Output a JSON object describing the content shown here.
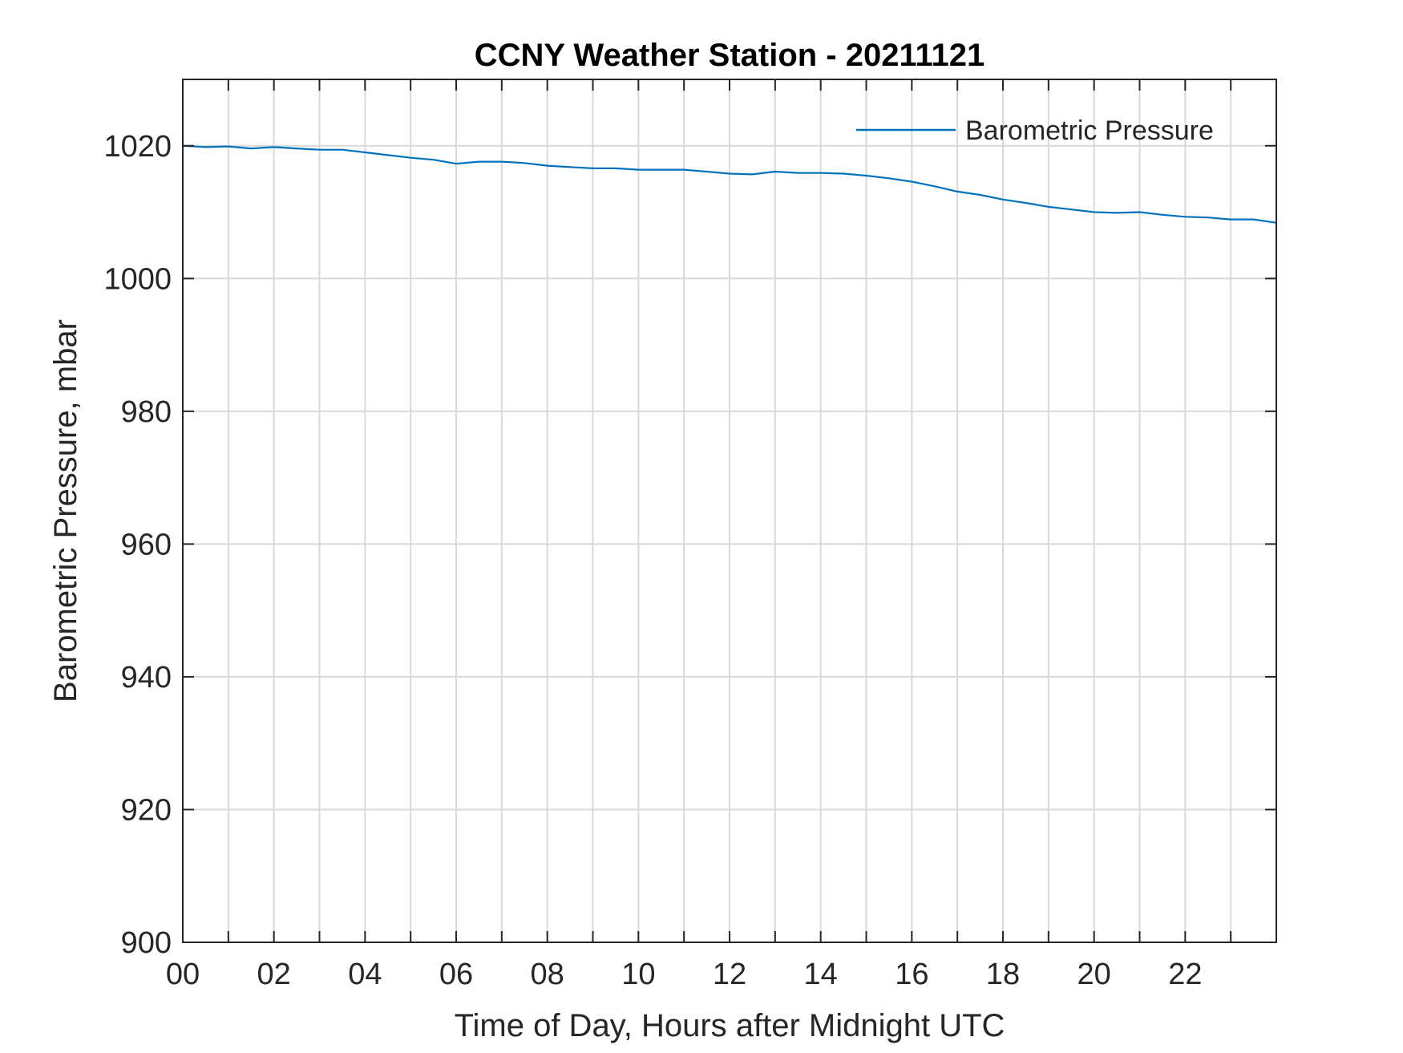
{
  "chart_data": {
    "type": "line",
    "title": "CCNY Weather Station - 20211121",
    "xlabel": "Time of Day, Hours after Midnight UTC",
    "ylabel": "Barometric Pressure, mbar",
    "xlim": [
      0,
      24
    ],
    "ylim": [
      900,
      1030
    ],
    "x_ticks": [
      0,
      2,
      4,
      6,
      8,
      10,
      12,
      14,
      16,
      18,
      20,
      22
    ],
    "x_tick_labels": [
      "00",
      "02",
      "04",
      "06",
      "08",
      "10",
      "12",
      "14",
      "16",
      "18",
      "20",
      "22"
    ],
    "x_minor_ticks": [
      1,
      3,
      5,
      7,
      9,
      11,
      13,
      15,
      17,
      19,
      21,
      23
    ],
    "y_ticks": [
      900,
      920,
      940,
      960,
      980,
      1000,
      1020
    ],
    "y_tick_labels": [
      "900",
      "920",
      "940",
      "960",
      "980",
      "1000",
      "1020"
    ],
    "grid": true,
    "legend_position": "top-right",
    "series": [
      {
        "name": "Barometric Pressure",
        "color": "#0072BD",
        "x": [
          0,
          0.5,
          1,
          1.5,
          2,
          2.5,
          3,
          3.5,
          4,
          4.5,
          5,
          5.5,
          6,
          6.5,
          7,
          7.5,
          8,
          8.5,
          9,
          9.5,
          10,
          10.5,
          11,
          11.5,
          12,
          12.5,
          13,
          13.5,
          14,
          14.5,
          15,
          15.5,
          16,
          16.5,
          17,
          17.5,
          18,
          18.5,
          19,
          19.5,
          20,
          20.5,
          21,
          21.5,
          22,
          22.5,
          23,
          23.5,
          24
        ],
        "y": [
          1020.0,
          1019.8,
          1019.9,
          1019.6,
          1019.8,
          1019.6,
          1019.4,
          1019.4,
          1019.0,
          1018.6,
          1018.2,
          1017.9,
          1017.3,
          1017.6,
          1017.6,
          1017.4,
          1017.0,
          1016.8,
          1016.6,
          1016.6,
          1016.4,
          1016.4,
          1016.4,
          1016.1,
          1015.8,
          1015.7,
          1016.1,
          1015.9,
          1015.9,
          1015.8,
          1015.5,
          1015.1,
          1014.6,
          1013.9,
          1013.1,
          1012.6,
          1011.9,
          1011.4,
          1010.8,
          1010.4,
          1010.0,
          1009.9,
          1010.0,
          1009.6,
          1009.3,
          1009.2,
          1008.9,
          1008.9,
          1008.4
        ]
      }
    ]
  }
}
